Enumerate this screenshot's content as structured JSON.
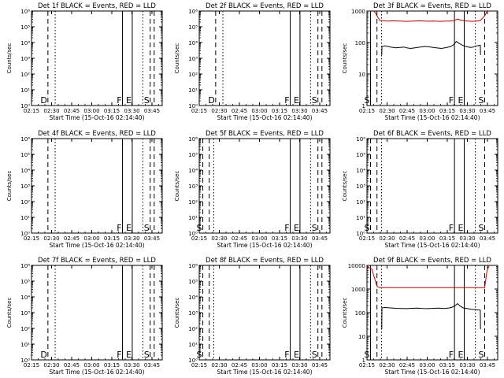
{
  "figure": {
    "x_label": "Start Time (15-Oct-16 02:14:40)",
    "y_label": "Counts/sec",
    "x_ticks": [
      "02:15",
      "02:30",
      "02:45",
      "03:00",
      "03:15",
      "03:30",
      "03:45"
    ],
    "x_tick_minutes": [
      0.33,
      15.33,
      30.33,
      45.33,
      60.33,
      75.33,
      90.33
    ],
    "x_range_minutes": [
      0.33,
      98.0
    ],
    "colors": {
      "events": "#000000",
      "lld": "#cc0000",
      "axes": "#000000"
    }
  },
  "chart_data": [
    {
      "type": "line",
      "title": "Det 1f BLACK = Events, RED = LLD",
      "y_scale": "log",
      "ylim": [
        1,
        1000000
      ],
      "y_ticks": [
        "10⁰",
        "10¹",
        "10²",
        "10³",
        "10⁴",
        "10⁵",
        "10⁶"
      ],
      "y_tick_values": [
        1,
        10,
        100,
        1000,
        10000,
        100000,
        1000000
      ],
      "markers": [
        {
          "minute": 12.6,
          "style": "dashed",
          "label": "D"
        },
        {
          "minute": 18.0,
          "style": "dotted",
          "label": ""
        },
        {
          "minute": 68.3,
          "style": "solid",
          "label": "F"
        },
        {
          "minute": 75.6,
          "style": "solid",
          "label": "E"
        },
        {
          "minute": 83.5,
          "style": "dotted",
          "label": ""
        },
        {
          "minute": 89.0,
          "style": "dashed",
          "label": "S"
        },
        {
          "minute": 92.0,
          "style": "dashed",
          "label": ""
        }
      ],
      "series": []
    },
    {
      "type": "line",
      "title": "Det 2f BLACK = Events, RED = LLD",
      "y_scale": "log",
      "ylim": [
        1,
        1000000
      ],
      "y_ticks": [
        "10⁰",
        "10¹",
        "10²",
        "10³",
        "10⁴",
        "10⁵",
        "10⁶"
      ],
      "y_tick_values": [
        1,
        10,
        100,
        1000,
        10000,
        100000,
        1000000
      ],
      "markers": [
        {
          "minute": 12.6,
          "style": "dashed",
          "label": "D"
        },
        {
          "minute": 18.0,
          "style": "dotted",
          "label": ""
        },
        {
          "minute": 68.3,
          "style": "solid",
          "label": "F"
        },
        {
          "minute": 75.6,
          "style": "solid",
          "label": "E"
        },
        {
          "minute": 83.5,
          "style": "dotted",
          "label": ""
        },
        {
          "minute": 89.0,
          "style": "dashed",
          "label": "S"
        },
        {
          "minute": 92.0,
          "style": "dashed",
          "label": ""
        }
      ],
      "series": []
    },
    {
      "type": "line",
      "title": "Det 3f BLACK = Events, RED = LLD",
      "y_scale": "log",
      "ylim": [
        1,
        1000
      ],
      "y_ticks": [
        "1",
        "10",
        "100",
        "1000"
      ],
      "y_tick_values": [
        1,
        10,
        100,
        1000
      ],
      "markers": [
        {
          "minute": 3.0,
          "style": "solid",
          "label": "S"
        },
        {
          "minute": 7.8,
          "style": "dashed",
          "label": ""
        },
        {
          "minute": 11.2,
          "style": "dotted",
          "label": ""
        },
        {
          "minute": 65.7,
          "style": "solid",
          "label": "F"
        },
        {
          "minute": 73.0,
          "style": "solid",
          "label": "E"
        },
        {
          "minute": 81.3,
          "style": "dotted",
          "label": ""
        },
        {
          "minute": 88.3,
          "style": "dashed",
          "label": "S"
        }
      ],
      "series": [
        {
          "color": "#cc0000",
          "x": [
            5,
            6.5,
            7.8,
            10,
            15,
            20,
            25,
            30,
            35,
            40,
            45,
            50,
            55,
            60,
            62,
            64,
            66,
            68,
            70,
            73,
            76,
            79,
            82,
            85,
            88.3,
            89.5,
            91
          ],
          "y": [
            1000,
            900,
            700,
            500,
            480,
            490,
            480,
            470,
            480,
            490,
            475,
            480,
            470,
            480,
            480,
            490,
            510,
            560,
            520,
            490,
            480,
            470,
            480,
            500,
            700,
            900,
            1000
          ]
        },
        {
          "color": "#000000",
          "x": [
            11.4,
            11.5,
            14,
            18,
            22,
            25,
            28,
            30,
            33,
            36,
            40,
            44,
            48,
            52,
            56,
            60,
            63,
            65,
            66,
            67,
            69,
            71,
            73,
            76,
            78,
            80,
            82,
            83.5,
            85,
            85.2
          ],
          "y": [
            40,
            75,
            78,
            72,
            68,
            70,
            72,
            68,
            65,
            68,
            72,
            75,
            72,
            68,
            65,
            70,
            75,
            85,
            95,
            108,
            95,
            85,
            78,
            72,
            70,
            72,
            78,
            80,
            82,
            40
          ]
        }
      ]
    },
    {
      "type": "line",
      "title": "Det 4f BLACK = Events, RED = LLD",
      "y_scale": "log",
      "ylim": [
        1,
        1000000
      ],
      "y_ticks": [
        "10⁰",
        "10¹",
        "10²",
        "10³",
        "10⁴",
        "10⁵",
        "10⁶"
      ],
      "y_tick_values": [
        1,
        10,
        100,
        1000,
        10000,
        100000,
        1000000
      ],
      "markers": [
        {
          "minute": 12.6,
          "style": "dashed",
          "label": ""
        },
        {
          "minute": 18.0,
          "style": "dotted",
          "label": ""
        },
        {
          "minute": 68.3,
          "style": "solid",
          "label": "F"
        },
        {
          "minute": 75.6,
          "style": "solid",
          "label": "E"
        },
        {
          "minute": 83.5,
          "style": "dotted",
          "label": ""
        },
        {
          "minute": 89.0,
          "style": "dashed",
          "label": "S"
        },
        {
          "minute": 92.0,
          "style": "dashed",
          "label": ""
        }
      ],
      "series": []
    },
    {
      "type": "line",
      "title": "Det 5f BLACK = Events, RED = LLD",
      "y_scale": "log",
      "ylim": [
        1,
        1000000
      ],
      "y_ticks": [
        "10⁰",
        "10¹",
        "10²",
        "10³",
        "10⁴",
        "10⁵",
        "10⁶"
      ],
      "y_tick_values": [
        1,
        10,
        100,
        1000,
        10000,
        100000,
        1000000
      ],
      "markers": [
        {
          "minute": 3.0,
          "style": "dashed",
          "label": "S"
        },
        {
          "minute": 7.8,
          "style": "dashed",
          "label": ""
        },
        {
          "minute": 11.2,
          "style": "dotted",
          "label": ""
        },
        {
          "minute": 68.3,
          "style": "solid",
          "label": "F"
        },
        {
          "minute": 75.6,
          "style": "solid",
          "label": "E"
        },
        {
          "minute": 83.5,
          "style": "dotted",
          "label": ""
        },
        {
          "minute": 89.0,
          "style": "dashed",
          "label": "S"
        },
        {
          "minute": 92.0,
          "style": "dashed",
          "label": ""
        }
      ],
      "series": []
    },
    {
      "type": "line",
      "title": "Det 6f BLACK = Events, RED = LLD",
      "y_scale": "log",
      "ylim": [
        1,
        1000000
      ],
      "y_ticks": [
        "10⁰",
        "10¹",
        "10²",
        "10³",
        "10⁴",
        "10⁵",
        "10⁶"
      ],
      "y_tick_values": [
        1,
        10,
        100,
        1000,
        10000,
        100000,
        1000000
      ],
      "markers": [
        {
          "minute": 3.0,
          "style": "dashed",
          "label": "S"
        },
        {
          "minute": 7.8,
          "style": "dashed",
          "label": ""
        },
        {
          "minute": 11.2,
          "style": "dotted",
          "label": ""
        },
        {
          "minute": 65.7,
          "style": "solid",
          "label": "F"
        },
        {
          "minute": 73.0,
          "style": "solid",
          "label": "E"
        },
        {
          "minute": 81.3,
          "style": "dotted",
          "label": ""
        },
        {
          "minute": 88.3,
          "style": "dashed",
          "label": "S"
        }
      ],
      "series": []
    },
    {
      "type": "line",
      "title": "Det 7f BLACK = Events, RED = LLD",
      "y_scale": "log",
      "ylim": [
        1,
        1000000
      ],
      "y_ticks": [
        "10⁰",
        "10¹",
        "10²",
        "10³",
        "10⁴",
        "10⁵",
        "10⁶"
      ],
      "y_tick_values": [
        1,
        10,
        100,
        1000,
        10000,
        100000,
        1000000
      ],
      "markers": [
        {
          "minute": 12.6,
          "style": "dashed",
          "label": "D"
        },
        {
          "minute": 18.0,
          "style": "dotted",
          "label": ""
        },
        {
          "minute": 68.3,
          "style": "solid",
          "label": "F"
        },
        {
          "minute": 75.6,
          "style": "solid",
          "label": "E"
        },
        {
          "minute": 83.5,
          "style": "dotted",
          "label": ""
        },
        {
          "minute": 89.0,
          "style": "dashed",
          "label": "S"
        },
        {
          "minute": 92.0,
          "style": "dashed",
          "label": ""
        }
      ],
      "series": []
    },
    {
      "type": "line",
      "title": "Det 8f BLACK = Events, RED = LLD",
      "y_scale": "log",
      "ylim": [
        1,
        1000000
      ],
      "y_ticks": [
        "10⁰",
        "10¹",
        "10²",
        "10³",
        "10⁴",
        "10⁵",
        "10⁶"
      ],
      "y_tick_values": [
        1,
        10,
        100,
        1000,
        10000,
        100000,
        1000000
      ],
      "markers": [
        {
          "minute": 3.0,
          "style": "dashed",
          "label": "S"
        },
        {
          "minute": 7.8,
          "style": "dashed",
          "label": ""
        },
        {
          "minute": 11.2,
          "style": "dotted",
          "label": ""
        },
        {
          "minute": 68.3,
          "style": "solid",
          "label": "F"
        },
        {
          "minute": 75.6,
          "style": "solid",
          "label": "E"
        },
        {
          "minute": 83.5,
          "style": "dotted",
          "label": ""
        },
        {
          "minute": 89.0,
          "style": "dashed",
          "label": "S"
        },
        {
          "minute": 92.0,
          "style": "dashed",
          "label": ""
        }
      ],
      "series": []
    },
    {
      "type": "line",
      "title": "Det 9f BLACK = Events, RED = LLD",
      "y_scale": "log",
      "ylim": [
        1,
        10000
      ],
      "y_ticks": [
        "1",
        "10",
        "100",
        "1000",
        "10000"
      ],
      "y_tick_values": [
        1,
        10,
        100,
        1000,
        10000
      ],
      "markers": [
        {
          "minute": 3.0,
          "style": "solid",
          "label": "S"
        },
        {
          "minute": 7.8,
          "style": "dashed",
          "label": ""
        },
        {
          "minute": 11.2,
          "style": "dotted",
          "label": ""
        },
        {
          "minute": 65.7,
          "style": "solid",
          "label": "F"
        },
        {
          "minute": 73.0,
          "style": "solid",
          "label": "E"
        },
        {
          "minute": 81.3,
          "style": "dotted",
          "label": ""
        },
        {
          "minute": 88.3,
          "style": "dashed",
          "label": "S"
        }
      ],
      "series": [
        {
          "color": "#cc0000",
          "x": [
            0.33,
            4,
            7.8,
            10,
            20,
            30,
            40,
            50,
            60,
            70,
            80,
            85,
            88.3,
            90,
            91.5
          ],
          "y": [
            9000,
            7000,
            1300,
            1150,
            1150,
            1150,
            1150,
            1150,
            1150,
            1150,
            1150,
            1150,
            1150,
            6000,
            9500
          ]
        },
        {
          "color": "#000000",
          "x": [
            11.4,
            11.5,
            14,
            18,
            22,
            26,
            30,
            34,
            38,
            42,
            46,
            50,
            54,
            58,
            62,
            64,
            66,
            68,
            70,
            72,
            75,
            78,
            81,
            83.5,
            85,
            85.2
          ],
          "y": [
            20,
            160,
            165,
            158,
            152,
            150,
            148,
            152,
            155,
            150,
            148,
            152,
            155,
            150,
            158,
            170,
            195,
            240,
            190,
            160,
            150,
            140,
            135,
            130,
            128,
            20
          ]
        }
      ]
    }
  ]
}
